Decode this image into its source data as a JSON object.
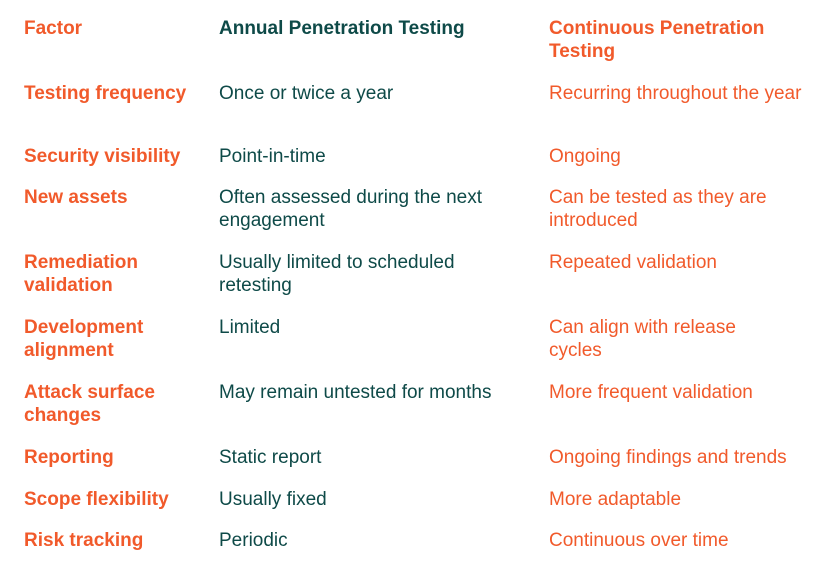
{
  "table": {
    "headers": [
      "Factor",
      "Annual Penetration Testing",
      "Continuous Penetration Testing"
    ],
    "rows": [
      [
        "Testing frequency",
        "Once or twice a year",
        "Recurring throughout the year"
      ],
      [
        "Security visibility",
        "Point-in-time",
        "Ongoing"
      ],
      [
        "New assets",
        "Often assessed during the next engagement",
        "Can be tested as they are introduced"
      ],
      [
        "Remediation validation",
        "Usually limited to scheduled retesting",
        "Repeated validation"
      ],
      [
        "Development alignment",
        "Limited",
        "Can align with release cycles"
      ],
      [
        "Attack surface changes",
        "May remain untested for months",
        "More frequent validation"
      ],
      [
        "Reporting",
        "Static report",
        "Ongoing findings and trends"
      ],
      [
        "Scope flexibility",
        "Usually fixed",
        "More adaptable"
      ],
      [
        "Risk tracking",
        "Periodic",
        "Continuous over time"
      ]
    ]
  },
  "colors": {
    "accent": "#f15a2b",
    "dark_teal": "#0e4a48",
    "background": "#ffffff"
  }
}
